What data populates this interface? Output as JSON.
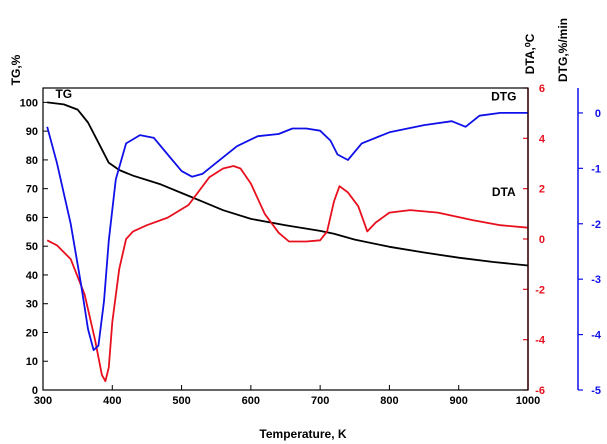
{
  "chart_data": {
    "type": "line",
    "xlabel": "Temperature, K",
    "xlim": [
      300,
      1000
    ],
    "xticks": [
      300,
      400,
      500,
      600,
      700,
      800,
      900,
      1000
    ],
    "axes": {
      "tg": {
        "label": "TG,%",
        "lim": [
          0,
          105
        ],
        "ticks": [
          0,
          10,
          20,
          30,
          40,
          50,
          60,
          70,
          80,
          90,
          100
        ],
        "color": "#000000"
      },
      "dta": {
        "label": "DTA,⁰C",
        "lim": [
          -6,
          6
        ],
        "ticks": [
          -6,
          -4,
          -2,
          0,
          2,
          4,
          6
        ],
        "color": "#e8101e"
      },
      "dtg": {
        "label": "DTG,%/min",
        "lim": [
          -5,
          0.45
        ],
        "ticks": [
          -5,
          -4,
          -3,
          -2,
          -1,
          0
        ],
        "color": "#1010e8"
      }
    },
    "series": [
      {
        "name": "TG",
        "axis": "tg",
        "color": "#000000",
        "x": [
          306,
          330,
          350,
          365,
          380,
          395,
          410,
          430,
          450,
          470,
          500,
          530,
          560,
          600,
          650,
          700,
          720,
          750,
          800,
          850,
          900,
          950,
          1000
        ],
        "y": [
          100,
          99.3,
          97.5,
          93,
          86,
          79,
          76.5,
          74.5,
          73,
          71.5,
          68.5,
          65.5,
          62.5,
          59.5,
          57.3,
          55.3,
          54.3,
          52.3,
          49.8,
          47.8,
          46,
          44.5,
          43.3
        ]
      },
      {
        "name": "DTA",
        "axis": "dta",
        "color": "#e8101e",
        "x": [
          306,
          320,
          340,
          360,
          375,
          385,
          390,
          395,
          400,
          410,
          420,
          430,
          450,
          480,
          510,
          540,
          560,
          575,
          585,
          600,
          620,
          640,
          655,
          680,
          700,
          710,
          720,
          728,
          740,
          755,
          768,
          780,
          800,
          830,
          870,
          920,
          960,
          1000
        ],
        "y": [
          -0.05,
          -0.25,
          -0.8,
          -2.2,
          -4.0,
          -5.4,
          -5.65,
          -5.1,
          -3.3,
          -1.2,
          0.0,
          0.3,
          0.55,
          0.85,
          1.35,
          2.45,
          2.8,
          2.9,
          2.8,
          2.2,
          1.0,
          0.25,
          -0.1,
          -0.1,
          -0.05,
          0.3,
          1.5,
          2.1,
          1.85,
          1.3,
          0.3,
          0.65,
          1.05,
          1.15,
          1.05,
          0.75,
          0.55,
          0.45
        ]
      },
      {
        "name": "DTG",
        "axis": "dtg",
        "color": "#1010e8",
        "x": [
          306,
          320,
          340,
          355,
          365,
          373,
          380,
          388,
          395,
          405,
          420,
          440,
          460,
          480,
          500,
          515,
          530,
          550,
          580,
          610,
          640,
          660,
          680,
          700,
          715,
          725,
          740,
          760,
          800,
          850,
          890,
          910,
          930,
          960,
          1000
        ],
        "y": [
          -0.25,
          -0.9,
          -2.0,
          -3.1,
          -3.9,
          -4.28,
          -4.2,
          -3.4,
          -2.3,
          -1.2,
          -0.55,
          -0.4,
          -0.45,
          -0.75,
          -1.05,
          -1.15,
          -1.1,
          -0.9,
          -0.6,
          -0.42,
          -0.38,
          -0.28,
          -0.28,
          -0.32,
          -0.5,
          -0.75,
          -0.85,
          -0.55,
          -0.35,
          -0.22,
          -0.15,
          -0.25,
          -0.05,
          0.0,
          0.0
        ]
      }
    ],
    "annotations": [
      {
        "text": "TG",
        "x": 330,
        "y": 101.5,
        "axis": "tg"
      },
      {
        "text": "DTG",
        "x": 965,
        "y": 0.22,
        "axis": "dtg"
      },
      {
        "text": "DTA",
        "x": 965,
        "y": 1.7,
        "axis": "dta"
      }
    ]
  }
}
